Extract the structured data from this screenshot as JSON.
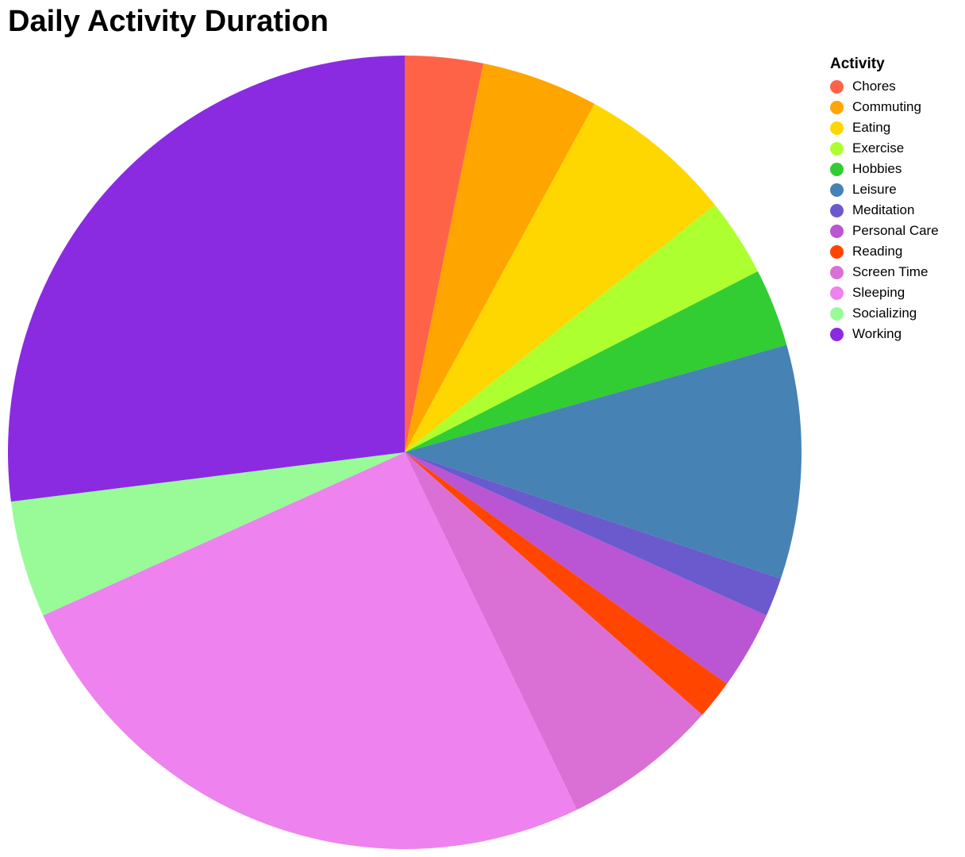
{
  "chart_data": {
    "type": "pie",
    "title": "Daily Activity Duration",
    "legend_title": "Activity",
    "legend_position": "top-right",
    "unit": "",
    "slices": [
      {
        "label": "Chores",
        "value": 1,
        "color": "#ff6347"
      },
      {
        "label": "Commuting",
        "value": 1.5,
        "color": "#ffa500"
      },
      {
        "label": "Eating",
        "value": 2,
        "color": "#ffd700"
      },
      {
        "label": "Exercise",
        "value": 1,
        "color": "#adff2f"
      },
      {
        "label": "Hobbies",
        "value": 1,
        "color": "#32cd32"
      },
      {
        "label": "Leisure",
        "value": 3,
        "color": "#4682b4"
      },
      {
        "label": "Meditation",
        "value": 0.5,
        "color": "#6a5acd"
      },
      {
        "label": "Personal Care",
        "value": 1,
        "color": "#ba55d3"
      },
      {
        "label": "Reading",
        "value": 0.5,
        "color": "#ff4500"
      },
      {
        "label": "Screen Time",
        "value": 2,
        "color": "#da70d6"
      },
      {
        "label": "Sleeping",
        "value": 8,
        "color": "#ee82ee"
      },
      {
        "label": "Socializing",
        "value": 1.5,
        "color": "#98fb98"
      },
      {
        "label": "Working",
        "value": 8.5,
        "color": "#8a2be2"
      }
    ]
  }
}
